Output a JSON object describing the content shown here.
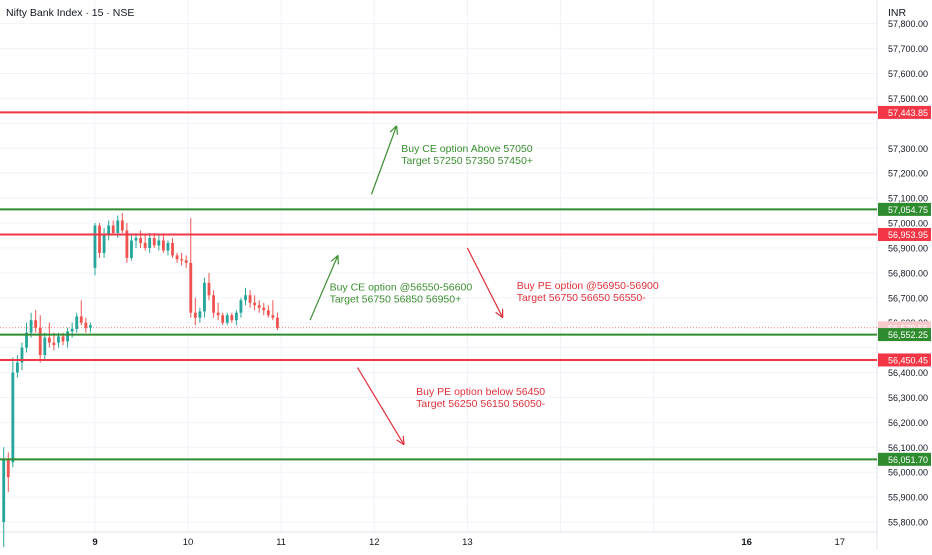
{
  "header": {
    "symbol": "Nifty Bank Index · 15 · NSE",
    "currency": "INR"
  },
  "colors": {
    "up": "#26a69a",
    "down": "#ef5350",
    "level_red": "#f23645",
    "level_green": "#2e8b2e",
    "annotation_green": "#3a8f2f",
    "annotation_red": "#e0303a",
    "grid": "#f0f3fa",
    "axis_text": "#131722"
  },
  "chart_data": {
    "type": "candlestick",
    "x_axis": {
      "range": [
        7.98,
        17.4
      ],
      "ticks": [
        {
          "value": 9,
          "label": "9",
          "bold": true
        },
        {
          "value": 10,
          "label": "10",
          "bold": false
        },
        {
          "value": 11,
          "label": "11",
          "bold": false
        },
        {
          "value": 12,
          "label": "12",
          "bold": false
        },
        {
          "value": 13,
          "label": "13",
          "bold": false
        },
        {
          "value": 16,
          "label": "16",
          "bold": true
        },
        {
          "value": 17,
          "label": "17",
          "bold": false
        }
      ],
      "tick_positions": [
        9,
        10,
        11,
        12,
        13,
        14,
        15
      ]
    },
    "y_axis": {
      "range": [
        55760,
        57895
      ],
      "tick_values": [
        55800,
        55900,
        56000,
        56100,
        56200,
        56300,
        56400,
        56500,
        56600,
        56700,
        56800,
        56900,
        57000,
        57100,
        57200,
        57300,
        57400,
        57500,
        57600,
        57700,
        57800
      ],
      "tick_labels": [
        "55,800.00",
        "55,900.00",
        "56,000.00",
        "56,100.00",
        "56,200.00",
        "56,300.00",
        "56,400.00",
        "",
        "",
        "56,700.00",
        "56,800.00",
        "56,900.00",
        "57,000.00",
        "57,100.00",
        "57,200.00",
        "57,300.00",
        "",
        "57,500.00",
        "57,600.00",
        "57,700.00",
        "57,800.00"
      ],
      "partial_label": "56,600.00",
      "grid": true,
      "position": "right"
    },
    "current_price": {
      "value": 56579.55,
      "label": "56,579.55"
    },
    "levels": [
      {
        "value": 57443.85,
        "label": "57,443.85",
        "color": "red"
      },
      {
        "value": 57054.75,
        "label": "57,054.75",
        "color": "green"
      },
      {
        "value": 56953.95,
        "label": "56,953.95",
        "color": "red"
      },
      {
        "value": 56552.25,
        "label": "56,552.25",
        "color": "green"
      },
      {
        "value": 56450.45,
        "label": "56,450.45",
        "color": "red"
      },
      {
        "value": 56051.7,
        "label": "56,051.70",
        "color": "green"
      }
    ],
    "candles": [
      {
        "o": 55800,
        "h": 56100,
        "l": 55700,
        "c": 56050
      },
      {
        "o": 56050,
        "h": 56080,
        "l": 55920,
        "c": 55980
      },
      {
        "o": 56040,
        "h": 56460,
        "l": 56020,
        "c": 56400
      },
      {
        "o": 56400,
        "h": 56470,
        "l": 56380,
        "c": 56440
      },
      {
        "o": 56440,
        "h": 56520,
        "l": 56410,
        "c": 56500
      },
      {
        "o": 56500,
        "h": 56600,
        "l": 56480,
        "c": 56560
      },
      {
        "o": 56560,
        "h": 56640,
        "l": 56540,
        "c": 56610
      },
      {
        "o": 56610,
        "h": 56650,
        "l": 56560,
        "c": 56580
      },
      {
        "o": 56580,
        "h": 56630,
        "l": 56440,
        "c": 56470
      },
      {
        "o": 56470,
        "h": 56560,
        "l": 56450,
        "c": 56540
      },
      {
        "o": 56540,
        "h": 56600,
        "l": 56500,
        "c": 56520
      },
      {
        "o": 56520,
        "h": 56560,
        "l": 56490,
        "c": 56510
      },
      {
        "o": 56520,
        "h": 56560,
        "l": 56500,
        "c": 56545
      },
      {
        "o": 56545,
        "h": 56560,
        "l": 56510,
        "c": 56525
      },
      {
        "o": 56525,
        "h": 56580,
        "l": 56500,
        "c": 56565
      },
      {
        "o": 56565,
        "h": 56600,
        "l": 56540,
        "c": 56575
      },
      {
        "o": 56575,
        "h": 56640,
        "l": 56560,
        "c": 56625
      },
      {
        "o": 56625,
        "h": 56690,
        "l": 56590,
        "c": 56600
      },
      {
        "o": 56600,
        "h": 56620,
        "l": 56560,
        "c": 56580
      },
      {
        "o": 56580,
        "h": 56600,
        "l": 56560,
        "c": 56590
      },
      {
        "o": 56820,
        "h": 57000,
        "l": 56790,
        "c": 56990
      },
      {
        "o": 56990,
        "h": 57000,
        "l": 56860,
        "c": 56880
      },
      {
        "o": 56880,
        "h": 56980,
        "l": 56860,
        "c": 56950
      },
      {
        "o": 56950,
        "h": 57010,
        "l": 56930,
        "c": 56990
      },
      {
        "o": 56990,
        "h": 57010,
        "l": 56950,
        "c": 56960
      },
      {
        "o": 56960,
        "h": 57030,
        "l": 56940,
        "c": 57010
      },
      {
        "o": 57010,
        "h": 57040,
        "l": 56960,
        "c": 56970
      },
      {
        "o": 56970,
        "h": 57000,
        "l": 56840,
        "c": 56860
      },
      {
        "o": 56860,
        "h": 56950,
        "l": 56850,
        "c": 56930
      },
      {
        "o": 56930,
        "h": 56960,
        "l": 56900,
        "c": 56940
      },
      {
        "o": 56940,
        "h": 56970,
        "l": 56900,
        "c": 56920
      },
      {
        "o": 56920,
        "h": 56950,
        "l": 56890,
        "c": 56900
      },
      {
        "o": 56900,
        "h": 56960,
        "l": 56880,
        "c": 56940
      },
      {
        "o": 56940,
        "h": 56960,
        "l": 56900,
        "c": 56910
      },
      {
        "o": 56910,
        "h": 56950,
        "l": 56890,
        "c": 56930
      },
      {
        "o": 56930,
        "h": 56950,
        "l": 56880,
        "c": 56890
      },
      {
        "o": 56890,
        "h": 56930,
        "l": 56870,
        "c": 56920
      },
      {
        "o": 56920,
        "h": 56940,
        "l": 56860,
        "c": 56870
      },
      {
        "o": 56870,
        "h": 56880,
        "l": 56840,
        "c": 56855
      },
      {
        "o": 56855,
        "h": 56880,
        "l": 56830,
        "c": 56850
      },
      {
        "o": 56850,
        "h": 56870,
        "l": 56820,
        "c": 56840
      },
      {
        "o": 56840,
        "h": 57020,
        "l": 56620,
        "c": 56640
      },
      {
        "o": 56640,
        "h": 56700,
        "l": 56590,
        "c": 56620
      },
      {
        "o": 56620,
        "h": 56660,
        "l": 56600,
        "c": 56645
      },
      {
        "o": 56645,
        "h": 56780,
        "l": 56620,
        "c": 56760
      },
      {
        "o": 56760,
        "h": 56800,
        "l": 56690,
        "c": 56710
      },
      {
        "o": 56710,
        "h": 56730,
        "l": 56620,
        "c": 56640
      },
      {
        "o": 56640,
        "h": 56680,
        "l": 56610,
        "c": 56630
      },
      {
        "o": 56630,
        "h": 56640,
        "l": 56590,
        "c": 56600
      },
      {
        "o": 56600,
        "h": 56640,
        "l": 56590,
        "c": 56630
      },
      {
        "o": 56630,
        "h": 56640,
        "l": 56600,
        "c": 56610
      },
      {
        "o": 56610,
        "h": 56650,
        "l": 56590,
        "c": 56640
      },
      {
        "o": 56640,
        "h": 56700,
        "l": 56620,
        "c": 56690
      },
      {
        "o": 56690,
        "h": 56740,
        "l": 56670,
        "c": 56710
      },
      {
        "o": 56710,
        "h": 56730,
        "l": 56660,
        "c": 56680
      },
      {
        "o": 56680,
        "h": 56710,
        "l": 56650,
        "c": 56670
      },
      {
        "o": 56670,
        "h": 56690,
        "l": 56640,
        "c": 56660
      },
      {
        "o": 56660,
        "h": 56680,
        "l": 56630,
        "c": 56650
      },
      {
        "o": 56650,
        "h": 56670,
        "l": 56620,
        "c": 56630
      },
      {
        "o": 56630,
        "h": 56690,
        "l": 56610,
        "c": 56620
      },
      {
        "o": 56620,
        "h": 56640,
        "l": 56570,
        "c": 56579.55
      }
    ],
    "annotations": [
      {
        "lines": [
          "Buy CE option Above 57050",
          "Target 57250 57350 57450+"
        ],
        "color": "green",
        "text_anchor": {
          "x": 12.29,
          "y": 57285
        },
        "arrow": {
          "from": {
            "x": 11.97,
            "y": 57115
          },
          "to": {
            "x": 12.24,
            "y": 57390
          }
        }
      },
      {
        "lines": [
          "Buy CE option @56550-56600",
          "Target 56750 56850 56950+"
        ],
        "color": "green",
        "text_anchor": {
          "x": 11.52,
          "y": 56730
        },
        "arrow": {
          "from": {
            "x": 11.31,
            "y": 56610
          },
          "to": {
            "x": 11.61,
            "y": 56870
          }
        }
      },
      {
        "lines": [
          "Buy PE option @56950-56900",
          "Target 56750 56650 56550-"
        ],
        "color": "red",
        "text_anchor": {
          "x": 13.53,
          "y": 56735
        },
        "arrow": {
          "from": {
            "x": 13.0,
            "y": 56900
          },
          "to": {
            "x": 13.38,
            "y": 56620
          }
        }
      },
      {
        "lines": [
          "Buy PE option below 56450",
          "Target 56250 56150 56050-"
        ],
        "color": "red",
        "text_anchor": {
          "x": 12.45,
          "y": 56310
        },
        "arrow": {
          "from": {
            "x": 11.82,
            "y": 56420
          },
          "to": {
            "x": 12.32,
            "y": 56110
          }
        }
      }
    ]
  }
}
